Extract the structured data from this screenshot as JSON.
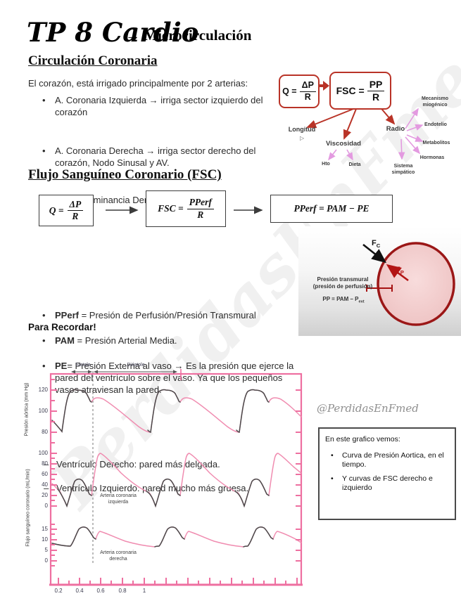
{
  "title": {
    "script": "TP 8 Cardio",
    "arrow": "→",
    "main": "Microcirculación"
  },
  "coronary_section": {
    "heading": "Circulación Coronaria",
    "intro": "El corazón, está irrigado principalmente por 2 arterias:",
    "bullets": [
      "A. Coronaria Izquierda → irriga sector izquierdo del corazón",
      "A. Coronaria Derecha → irriga sector derecho del corazón, Nodo Sinusal y AV."
    ],
    "sub_bullet": "Dominancia Derecha."
  },
  "factors_diagram": {
    "q_lhs": "Q =",
    "q_num": "ΔP",
    "q_den": "R",
    "fsc_lhs": "FSC =",
    "fsc_num": "PP",
    "fsc_den": "R",
    "longitud": "Longitud",
    "viscosidad": "Viscosidad",
    "radio": "Radio",
    "hto": "Hto",
    "dieta": "Dieta",
    "mecanismo": "Mecanismo miogénico",
    "endotelio": "Endotelio",
    "metabolitos": "Metabolitos",
    "hormonas": "Hormonas",
    "sistema": "Sistema simpático"
  },
  "fsc_section": {
    "heading": "Flujo Sanguíneo Coronario (FSC)",
    "eq1_lhs": "Q =",
    "eq1_num": "ΔP",
    "eq1_den": "R",
    "eq2_lhs": "FSC =",
    "eq2_num": "PPerf",
    "eq2_den": "R",
    "eq3": "PPerf = PAM − PE",
    "def_bullets": [
      {
        "term": "PPerf",
        "rest": " = Presión de Perfusión/Presión Transmural"
      },
      {
        "term": "PAM",
        "rest": " = Presión Arterial Media."
      },
      {
        "term": "PE",
        "rest": "= Presión Externa al vaso → Es la presión que ejerce la pared del ventrículo sobre el vaso. Ya que los pequeños vasos atraviesan la pared."
      }
    ]
  },
  "vessel_diagram": {
    "fc_main": "F",
    "fc_sub": "C",
    "fp_main": "F",
    "fp_sub": "P",
    "caption1": "Presión transmural",
    "caption2": "(presión de perfusión)",
    "formula_main": "PP = PAM – P",
    "formula_sub": "ext"
  },
  "recordar": {
    "heading": "Para Recordar!",
    "items": [
      "Ventrículo Derecho: pared más delgada.",
      "Ventrículo Izquierdo: pared mucho más gruesa."
    ]
  },
  "chart": {
    "systole_label": "Sístole",
    "diastole_label": "Diástole",
    "y1_label": "Presión aórtica (mm Hg)",
    "y1_ticks": [
      "120",
      "100",
      "80"
    ],
    "y2_label": "Flujo sanguíneo coronario (mL/min)",
    "y2_ticks": [
      "100",
      "80",
      "60",
      "40",
      "20",
      "0"
    ],
    "y3_ticks": [
      "15",
      "10",
      "5",
      "0"
    ],
    "x_ticks": [
      "0.2",
      "0.4",
      "0.6",
      "0.8",
      "1"
    ],
    "left_coronary_label": "Arteria coronaria izquierda",
    "right_coronary_label": "Arteria coronaria derecha"
  },
  "handle": "@PerdidasEnFmed",
  "watermark": "PerdidasEnFmed",
  "note_box": {
    "title": "En este grafico vemos:",
    "bullets": [
      "Curva de Presión Aortica, en el tiempo.",
      "Y curvas de FSC derecho e izquierdo"
    ]
  },
  "colors": {
    "chart_pink": "#ee6fa0",
    "curve_pink": "#f08cb0",
    "curve_dark": "#4a4a4a",
    "box_red": "#b93327",
    "pink_arrow": "#e39ae0",
    "vessel_fill": "#f3caca",
    "vessel_border": "#9b1717"
  },
  "chart_data": {
    "type": "line",
    "x_ticks": [
      0.2,
      0.4,
      0.6,
      0.8,
      1.0
    ],
    "annotations": [
      "Sístole",
      "Diástole"
    ],
    "cycles_shown": 3,
    "period_s": 0.82,
    "panels": [
      {
        "series": "Presión aórtica",
        "ylabel": "Presión aórtica (mm Hg)",
        "yticks": [
          80,
          100,
          120
        ],
        "cycle_points_t_v": [
          [
            0.0,
            92
          ],
          [
            0.09,
            80
          ],
          [
            0.17,
            120
          ],
          [
            0.25,
            118
          ],
          [
            0.3,
            110
          ],
          [
            0.33,
            113
          ],
          [
            0.45,
            96
          ],
          [
            0.62,
            82
          ],
          [
            0.78,
            80
          ]
        ]
      },
      {
        "series": "Arteria coronaria izquierda",
        "ylabel": "Flujo sanguíneo coronario (mL/min)",
        "yticks": [
          0,
          20,
          40,
          60,
          80,
          100
        ],
        "cycle_points_t_v": [
          [
            0.0,
            42
          ],
          [
            0.07,
            30
          ],
          [
            0.14,
            0
          ],
          [
            0.24,
            50
          ],
          [
            0.33,
            20
          ],
          [
            0.42,
            100
          ],
          [
            0.6,
            60
          ],
          [
            0.78,
            27
          ]
        ]
      },
      {
        "series": "Arteria coronaria derecha",
        "ylabel": "Flujo sanguíneo coronario (mL/min)",
        "yticks": [
          0,
          5,
          10,
          15
        ],
        "cycle_points_t_v": [
          [
            0.0,
            8.5
          ],
          [
            0.1,
            7
          ],
          [
            0.22,
            16
          ],
          [
            0.3,
            10.5
          ],
          [
            0.35,
            14
          ],
          [
            0.6,
            9
          ],
          [
            0.78,
            6.5
          ]
        ]
      }
    ],
    "grid": false,
    "legend": "none"
  }
}
